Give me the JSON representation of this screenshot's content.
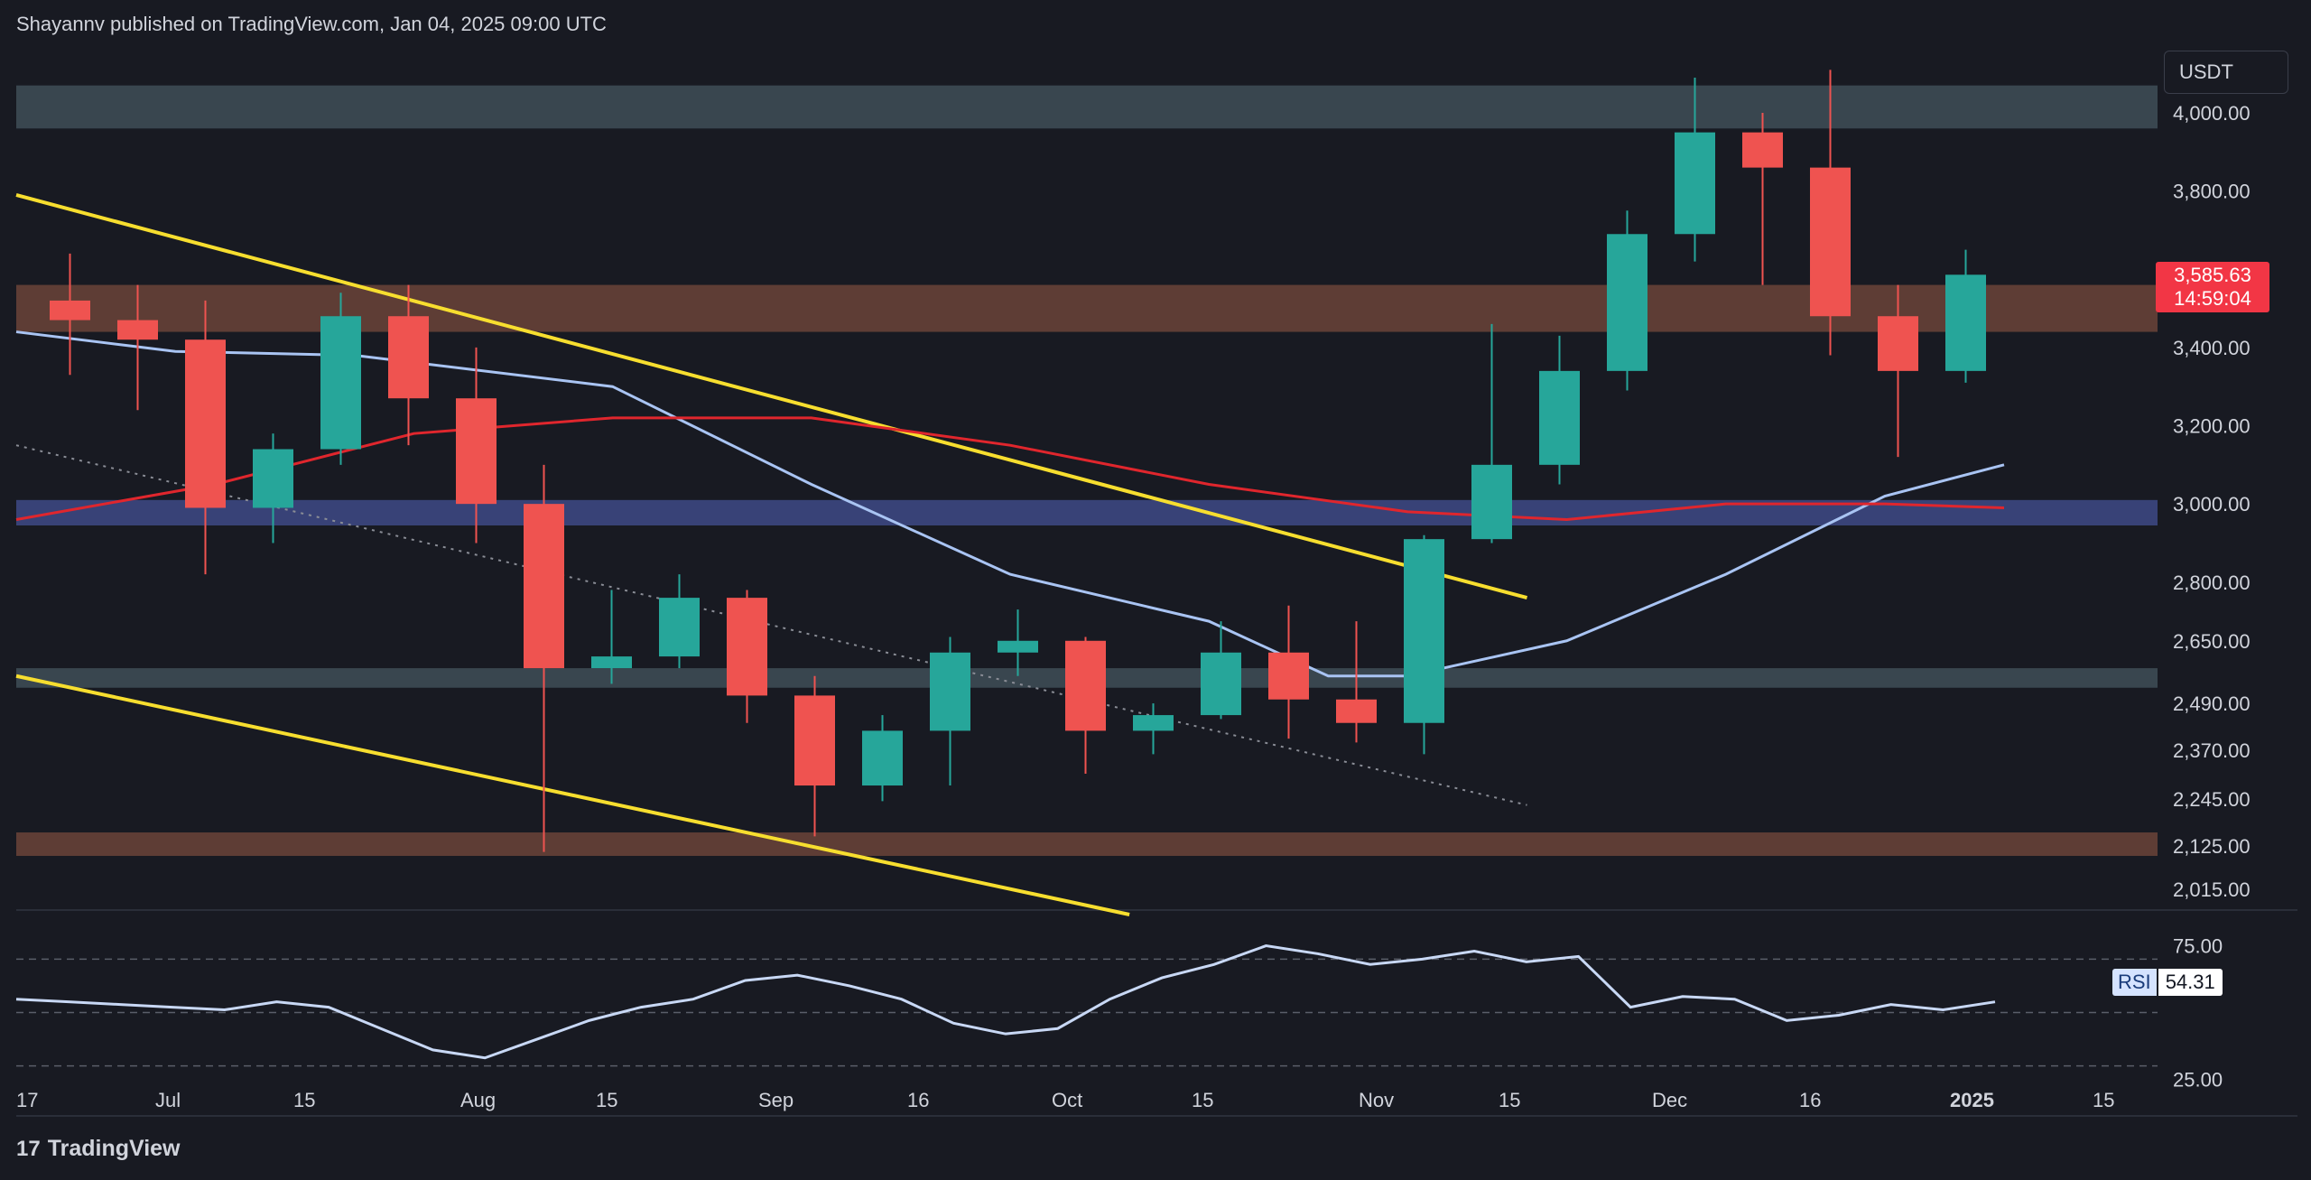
{
  "header": {
    "text": "Shayannv published on TradingView.com, Jan 04, 2025 09:00 UTC"
  },
  "toolbar": {
    "currency": "USDT"
  },
  "last_price": {
    "price": "3,585.63",
    "countdown": "14:59:04"
  },
  "rsi": {
    "label": "RSI",
    "value": "54.31"
  },
  "footer": {
    "brand": "TradingView",
    "logo_glyph": "17"
  },
  "colors": {
    "background": "#181a22",
    "up": "#26a69a",
    "down": "#ef5350",
    "ma_fast": "#a9c4f3",
    "ma_slow": "#e0262d",
    "trendline": "#f7de2f",
    "zone_gray": "#3f4f57",
    "zone_brown": "#6b4438",
    "zone_blue": "#3e4a86"
  },
  "chart_data": {
    "type": "candlestick",
    "symbol_unit": "USDT",
    "price_ticks": [
      "4,000.00",
      "3,800.00",
      "3,400.00",
      "3,200.00",
      "3,000.00",
      "2,800.00",
      "2,650.00",
      "2,490.00",
      "2,370.00",
      "2,245.00",
      "2,125.00",
      "2,015.00"
    ],
    "rsi_ticks": [
      "75.00",
      "25.00"
    ],
    "time_ticks": [
      "17",
      "Jul",
      "15",
      "Aug",
      "15",
      "Sep",
      "16",
      "Oct",
      "15",
      "Nov",
      "15",
      "Dec",
      "16",
      "2025",
      "15"
    ],
    "ohlc_weekly_approx": [
      {
        "week": "Jun 17",
        "o": 3520,
        "h": 3640,
        "l": 3330,
        "c": 3470
      },
      {
        "week": "Jun 24",
        "o": 3470,
        "h": 3560,
        "l": 3240,
        "c": 3420
      },
      {
        "week": "Jul 01",
        "o": 3420,
        "h": 3520,
        "l": 2820,
        "c": 2990
      },
      {
        "week": "Jul 08",
        "o": 2990,
        "h": 3180,
        "l": 2900,
        "c": 3140
      },
      {
        "week": "Jul 15",
        "o": 3140,
        "h": 3540,
        "l": 3100,
        "c": 3480
      },
      {
        "week": "Jul 22",
        "o": 3480,
        "h": 3560,
        "l": 3150,
        "c": 3270
      },
      {
        "week": "Jul 29",
        "o": 3270,
        "h": 3400,
        "l": 2900,
        "c": 3000
      },
      {
        "week": "Aug 05",
        "o": 3000,
        "h": 3100,
        "l": 2110,
        "c": 2580
      },
      {
        "week": "Aug 12",
        "o": 2580,
        "h": 2780,
        "l": 2540,
        "c": 2610
      },
      {
        "week": "Aug 19",
        "o": 2610,
        "h": 2820,
        "l": 2580,
        "c": 2760
      },
      {
        "week": "Aug 26",
        "o": 2760,
        "h": 2780,
        "l": 2440,
        "c": 2510
      },
      {
        "week": "Sep 02",
        "o": 2510,
        "h": 2560,
        "l": 2150,
        "c": 2280
      },
      {
        "week": "Sep 09",
        "o": 2280,
        "h": 2460,
        "l": 2240,
        "c": 2420
      },
      {
        "week": "Sep 16",
        "o": 2420,
        "h": 2660,
        "l": 2280,
        "c": 2620
      },
      {
        "week": "Sep 23",
        "o": 2620,
        "h": 2730,
        "l": 2560,
        "c": 2650
      },
      {
        "week": "Sep 30",
        "o": 2650,
        "h": 2660,
        "l": 2310,
        "c": 2420
      },
      {
        "week": "Oct 07",
        "o": 2420,
        "h": 2490,
        "l": 2360,
        "c": 2460
      },
      {
        "week": "Oct 14",
        "o": 2460,
        "h": 2700,
        "l": 2450,
        "c": 2620
      },
      {
        "week": "Oct 21",
        "o": 2620,
        "h": 2740,
        "l": 2400,
        "c": 2500
      },
      {
        "week": "Oct 28",
        "o": 2500,
        "h": 2700,
        "l": 2390,
        "c": 2440
      },
      {
        "week": "Nov 04",
        "o": 2440,
        "h": 2920,
        "l": 2360,
        "c": 2910
      },
      {
        "week": "Nov 11",
        "o": 2910,
        "h": 3460,
        "l": 2900,
        "c": 3100
      },
      {
        "week": "Nov 18",
        "o": 3100,
        "h": 3430,
        "l": 3050,
        "c": 3340
      },
      {
        "week": "Nov 25",
        "o": 3340,
        "h": 3750,
        "l": 3290,
        "c": 3690
      },
      {
        "week": "Dec 02",
        "o": 3690,
        "h": 4090,
        "l": 3620,
        "c": 3950
      },
      {
        "week": "Dec 09",
        "o": 3950,
        "h": 4000,
        "l": 3560,
        "c": 3860
      },
      {
        "week": "Dec 16",
        "o": 3860,
        "h": 4110,
        "l": 3380,
        "c": 3480
      },
      {
        "week": "Dec 23",
        "o": 3480,
        "h": 3560,
        "l": 3120,
        "c": 3340
      },
      {
        "week": "Dec 30",
        "o": 3340,
        "h": 3650,
        "l": 3310,
        "c": 3586
      }
    ],
    "zones": [
      {
        "kind": "supply",
        "color": "gray",
        "from": 3960,
        "to": 4070
      },
      {
        "kind": "resistance",
        "color": "brown",
        "from": 3440,
        "to": 3560
      },
      {
        "kind": "support",
        "color": "blue",
        "from": 2945,
        "to": 3010
      },
      {
        "kind": "support",
        "color": "gray",
        "from": 2530,
        "to": 2580
      },
      {
        "kind": "demand",
        "color": "brown",
        "from": 2100,
        "to": 2160
      }
    ],
    "moving_averages": [
      {
        "name": "MA fast",
        "color": "blue",
        "points": [
          [
            0,
            3440
          ],
          [
            0.08,
            3390
          ],
          [
            0.17,
            3380
          ],
          [
            0.3,
            3300
          ],
          [
            0.4,
            3050
          ],
          [
            0.5,
            2820
          ],
          [
            0.6,
            2700
          ],
          [
            0.66,
            2560
          ],
          [
            0.7,
            2560
          ],
          [
            0.78,
            2650
          ],
          [
            0.86,
            2820
          ],
          [
            0.94,
            3020
          ],
          [
            1,
            3100
          ]
        ]
      },
      {
        "name": "MA slow",
        "color": "red",
        "points": [
          [
            0,
            2960
          ],
          [
            0.1,
            3050
          ],
          [
            0.2,
            3180
          ],
          [
            0.3,
            3220
          ],
          [
            0.4,
            3220
          ],
          [
            0.5,
            3150
          ],
          [
            0.6,
            3050
          ],
          [
            0.7,
            2980
          ],
          [
            0.78,
            2960
          ],
          [
            0.86,
            3000
          ],
          [
            0.94,
            3000
          ],
          [
            1,
            2990
          ]
        ]
      }
    ],
    "trendlines": [
      {
        "name": "upper descending",
        "from": [
          0,
          3790
        ],
        "to": [
          0.76,
          2760
        ]
      },
      {
        "name": "lower descending",
        "from": [
          0,
          2560
        ],
        "to": [
          0.56,
          1950
        ]
      },
      {
        "name": "dotted mid line",
        "from": [
          0,
          3150
        ],
        "to": [
          0.76,
          2230
        ]
      }
    ],
    "rsi_series": [
      55,
      54,
      53,
      52,
      51,
      54,
      52,
      44,
      36,
      33,
      40,
      47,
      52,
      55,
      62,
      64,
      60,
      55,
      46,
      42,
      44,
      55,
      63,
      68,
      75,
      72,
      68,
      70,
      73,
      69,
      71,
      52,
      56,
      55,
      47,
      49,
      53,
      51,
      54
    ],
    "rsi_levels": [
      70,
      50,
      30
    ],
    "price_range": [
      1980,
      4150
    ],
    "rsi_range": [
      15,
      85
    ]
  }
}
